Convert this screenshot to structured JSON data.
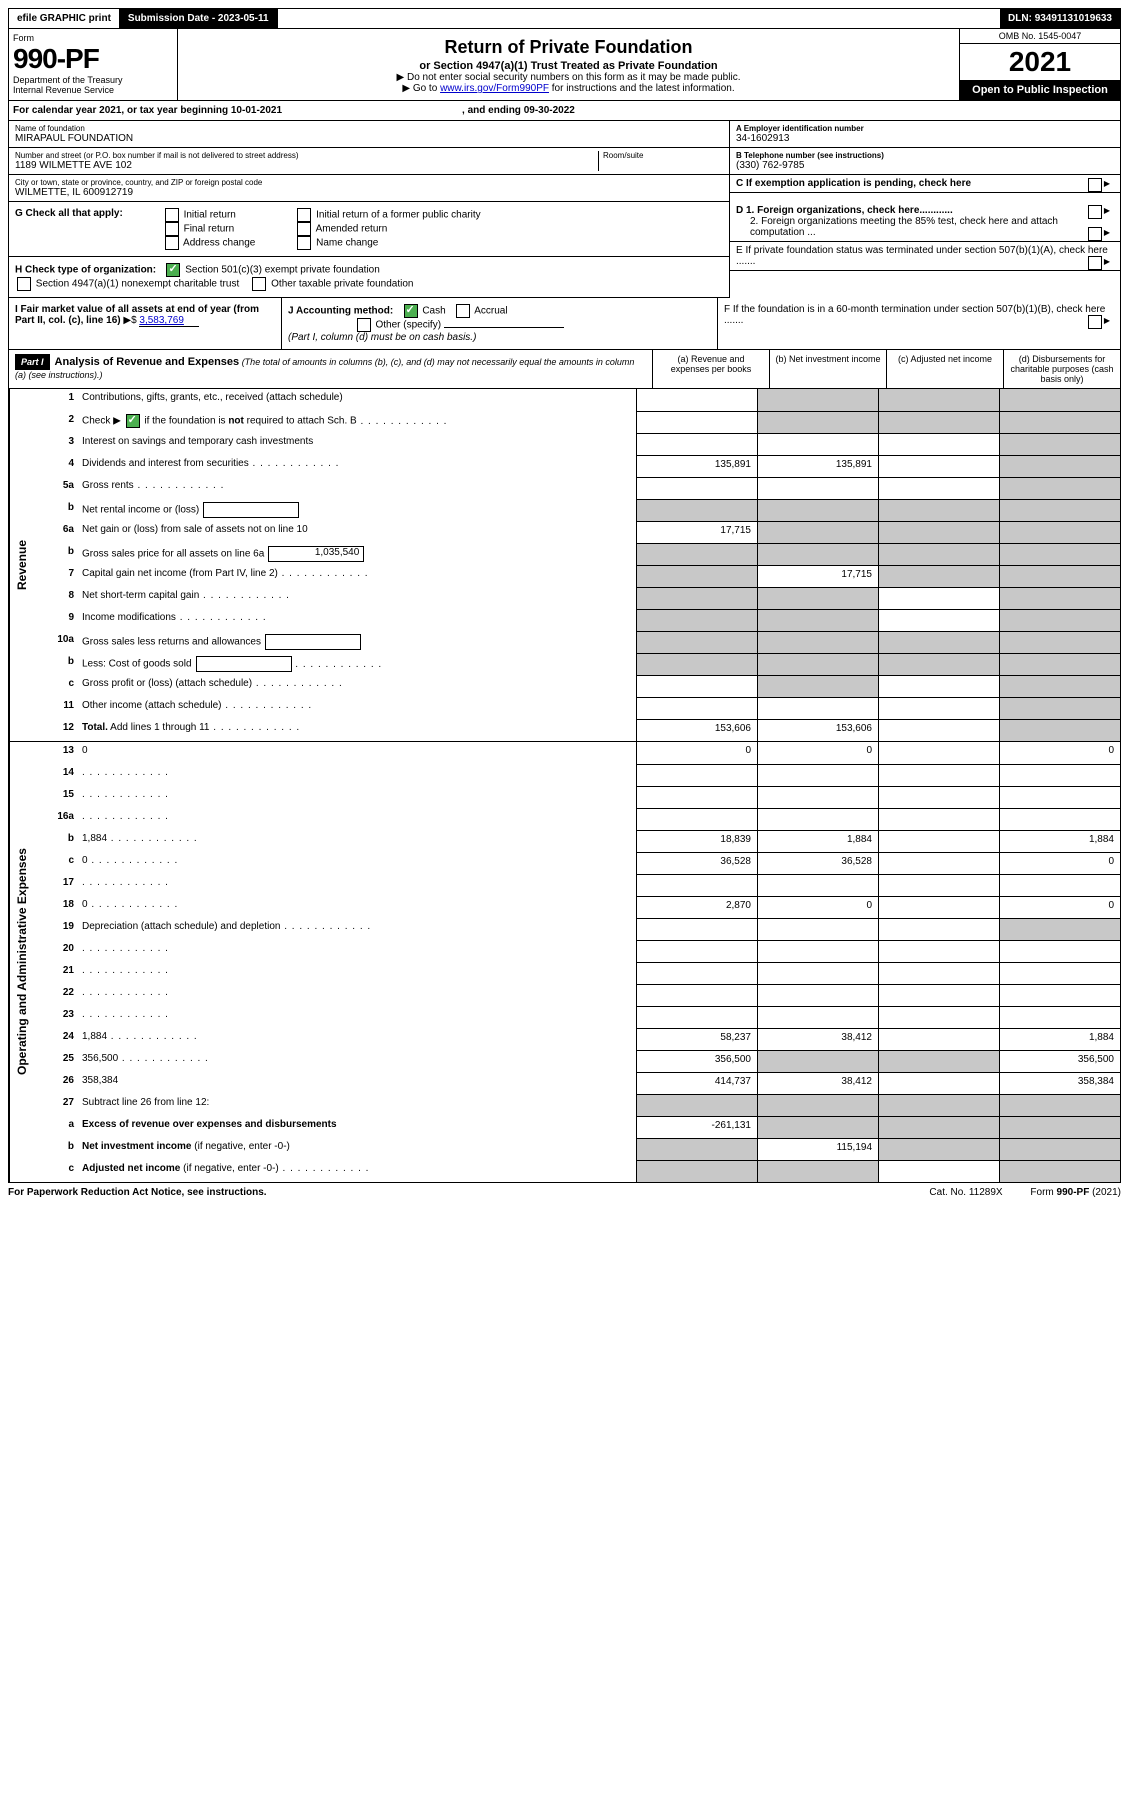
{
  "topbar": {
    "efile": "efile GRAPHIC print",
    "subdate_label": "Submission Date - ",
    "subdate": "2023-05-11",
    "dln_label": "DLN: ",
    "dln": "93491131019633"
  },
  "header": {
    "form_label": "Form",
    "form_no": "990-PF",
    "dept": "Department of the Treasury",
    "irs": "Internal Revenue Service",
    "title": "Return of Private Foundation",
    "subtitle": "or Section 4947(a)(1) Trust Treated as Private Foundation",
    "instr1": "▶ Do not enter social security numbers on this form as it may be made public.",
    "instr2_pre": "▶ Go to ",
    "instr2_link": "www.irs.gov/Form990PF",
    "instr2_post": " for instructions and the latest information.",
    "omb": "OMB No. 1545-0047",
    "year": "2021",
    "open": "Open to Public Inspection"
  },
  "cal": {
    "text": "For calendar year 2021, or tax year beginning 10-01-2021",
    "end": ", and ending 09-30-2022"
  },
  "entity": {
    "name_label": "Name of foundation",
    "name": "MIRAPAUL FOUNDATION",
    "addr_label": "Number and street (or P.O. box number if mail is not delivered to street address)",
    "addr": "1189 WILMETTE AVE 102",
    "room_label": "Room/suite",
    "city_label": "City or town, state or province, country, and ZIP or foreign postal code",
    "city": "WILMETTE, IL  600912719",
    "a_label": "A Employer identification number",
    "a_val": "34-1602913",
    "b_label": "B Telephone number (see instructions)",
    "b_val": "(330) 762-9785",
    "c_label": "C If exemption application is pending, check here",
    "d1": "D 1. Foreign organizations, check here............",
    "d2": "2. Foreign organizations meeting the 85% test, check here and attach computation ...",
    "e": "E  If private foundation status was terminated under section 507(b)(1)(A), check here .......",
    "f": "F  If the foundation is in a 60-month termination under section 507(b)(1)(B), check here .......",
    "g_label": "G Check all that apply:",
    "g_opts": [
      "Initial return",
      "Initial return of a former public charity",
      "Final return",
      "Amended return",
      "Address change",
      "Name change"
    ],
    "h_label": "H Check type of organization:",
    "h_opts": [
      "Section 501(c)(3) exempt private foundation",
      "Section 4947(a)(1) nonexempt charitable trust",
      "Other taxable private foundation"
    ],
    "i_label": "I Fair market value of all assets at end of year (from Part II, col. (c), line 16)",
    "i_val": "3,583,769",
    "j_label": "J Accounting method:",
    "j_opts": [
      "Cash",
      "Accrual",
      "Other (specify)"
    ],
    "j_note": "(Part I, column (d) must be on cash basis.)"
  },
  "part1": {
    "label": "Part I",
    "title": "Analysis of Revenue and Expenses",
    "note": "(The total of amounts in columns (b), (c), and (d) may not necessarily equal the amounts in column (a) (see instructions).)",
    "cols": [
      "(a)  Revenue and expenses per books",
      "(b)  Net investment income",
      "(c)  Adjusted net income",
      "(d)  Disbursements for charitable purposes (cash basis only)"
    ]
  },
  "sections": {
    "revenue": "Revenue",
    "opex": "Operating and Administrative Expenses"
  },
  "rows_rev": [
    {
      "n": "1",
      "d": "Contributions, gifts, grants, etc., received (attach schedule)",
      "a": "",
      "b_s": true,
      "c_s": true,
      "d_s": true
    },
    {
      "n": "2",
      "d": "Check ▶ [✓] if the foundation is <b>not</b> required to attach Sch. B",
      "dots": true,
      "a": "",
      "b_s": true,
      "c_s": true,
      "d_s": true,
      "chk": true
    },
    {
      "n": "3",
      "d": "Interest on savings and temporary cash investments",
      "a": "",
      "b": "",
      "c": "",
      "d_s": true
    },
    {
      "n": "4",
      "d": "Dividends and interest from securities",
      "dots": true,
      "a": "135,891",
      "b": "135,891",
      "c": "",
      "d_s": true
    },
    {
      "n": "5a",
      "d": "Gross rents",
      "dots": true,
      "a": "",
      "b": "",
      "c": "",
      "d_s": true
    },
    {
      "n": "b",
      "d": "Net rental income or (loss)",
      "sub": "",
      "a_s": true,
      "b_s": true,
      "c_s": true,
      "d_s": true
    },
    {
      "n": "6a",
      "d": "Net gain or (loss) from sale of assets not on line 10",
      "a": "17,715",
      "b_s": true,
      "c_s": true,
      "d_s": true
    },
    {
      "n": "b",
      "d": "Gross sales price for all assets on line 6a",
      "sub": "1,035,540",
      "a_s": true,
      "b_s": true,
      "c_s": true,
      "d_s": true
    },
    {
      "n": "7",
      "d": "Capital gain net income (from Part IV, line 2)",
      "dots": true,
      "a_s": true,
      "b": "17,715",
      "c_s": true,
      "d_s": true
    },
    {
      "n": "8",
      "d": "Net short-term capital gain",
      "dots": true,
      "a_s": true,
      "b_s": true,
      "c": "",
      "d_s": true
    },
    {
      "n": "9",
      "d": "Income modifications",
      "dots": true,
      "a_s": true,
      "b_s": true,
      "c": "",
      "d_s": true
    },
    {
      "n": "10a",
      "d": "Gross sales less returns and allowances",
      "sub": "",
      "a_s": true,
      "b_s": true,
      "c_s": true,
      "d_s": true
    },
    {
      "n": "b",
      "d": "Less: Cost of goods sold",
      "dots": true,
      "sub": "",
      "a_s": true,
      "b_s": true,
      "c_s": true,
      "d_s": true
    },
    {
      "n": "c",
      "d": "Gross profit or (loss) (attach schedule)",
      "dots": true,
      "a": "",
      "b_s": true,
      "c": "",
      "d_s": true
    },
    {
      "n": "11",
      "d": "Other income (attach schedule)",
      "dots": true,
      "a": "",
      "b": "",
      "c": "",
      "d_s": true
    },
    {
      "n": "12",
      "d": "<b>Total.</b> Add lines 1 through 11",
      "dots": true,
      "a": "153,606",
      "b": "153,606",
      "c": "",
      "d_s": true
    }
  ],
  "rows_exp": [
    {
      "n": "13",
      "d": "0",
      "a": "0",
      "b": "0",
      "c": ""
    },
    {
      "n": "14",
      "d": "",
      "dots": true,
      "a": "",
      "b": "",
      "c": ""
    },
    {
      "n": "15",
      "d": "",
      "dots": true,
      "a": "",
      "b": "",
      "c": ""
    },
    {
      "n": "16a",
      "d": "",
      "dots": true,
      "a": "",
      "b": "",
      "c": ""
    },
    {
      "n": "b",
      "d": "1,884",
      "dots": true,
      "a": "18,839",
      "b": "1,884",
      "c": ""
    },
    {
      "n": "c",
      "d": "0",
      "dots": true,
      "a": "36,528",
      "b": "36,528",
      "c": ""
    },
    {
      "n": "17",
      "d": "",
      "dots": true,
      "a": "",
      "b": "",
      "c": ""
    },
    {
      "n": "18",
      "d": "0",
      "dots": true,
      "a": "2,870",
      "b": "0",
      "c": ""
    },
    {
      "n": "19",
      "d": "Depreciation (attach schedule) and depletion",
      "dots": true,
      "a": "",
      "b": "",
      "c": "",
      "d_s": true
    },
    {
      "n": "20",
      "d": "",
      "dots": true,
      "a": "",
      "b": "",
      "c": ""
    },
    {
      "n": "21",
      "d": "",
      "dots": true,
      "a": "",
      "b": "",
      "c": ""
    },
    {
      "n": "22",
      "d": "",
      "dots": true,
      "a": "",
      "b": "",
      "c": ""
    },
    {
      "n": "23",
      "d": "",
      "dots": true,
      "a": "",
      "b": "",
      "c": ""
    },
    {
      "n": "24",
      "d": "1,884",
      "dots": true,
      "a": "58,237",
      "b": "38,412",
      "c": ""
    },
    {
      "n": "25",
      "d": "356,500",
      "dots": true,
      "a": "356,500",
      "b_s": true,
      "c_s": true
    },
    {
      "n": "26",
      "d": "358,384",
      "a": "414,737",
      "b": "38,412",
      "c": ""
    },
    {
      "n": "27",
      "d": "Subtract line 26 from line 12:",
      "a_s": true,
      "b_s": true,
      "c_s": true,
      "d_s": true
    },
    {
      "n": "a",
      "d": "<b>Excess of revenue over expenses and disbursements</b>",
      "a": "-261,131",
      "b_s": true,
      "c_s": true,
      "d_s": true
    },
    {
      "n": "b",
      "d": "<b>Net investment income</b> (if negative, enter -0-)",
      "a_s": true,
      "b": "115,194",
      "c_s": true,
      "d_s": true
    },
    {
      "n": "c",
      "d": "<b>Adjusted net income</b> (if negative, enter -0-)",
      "dots": true,
      "a_s": true,
      "b_s": true,
      "c": "",
      "d_s": true
    }
  ],
  "footer": {
    "left": "For Paperwork Reduction Act Notice, see instructions.",
    "mid": "Cat. No. 11289X",
    "right": "Form 990-PF (2021)"
  }
}
